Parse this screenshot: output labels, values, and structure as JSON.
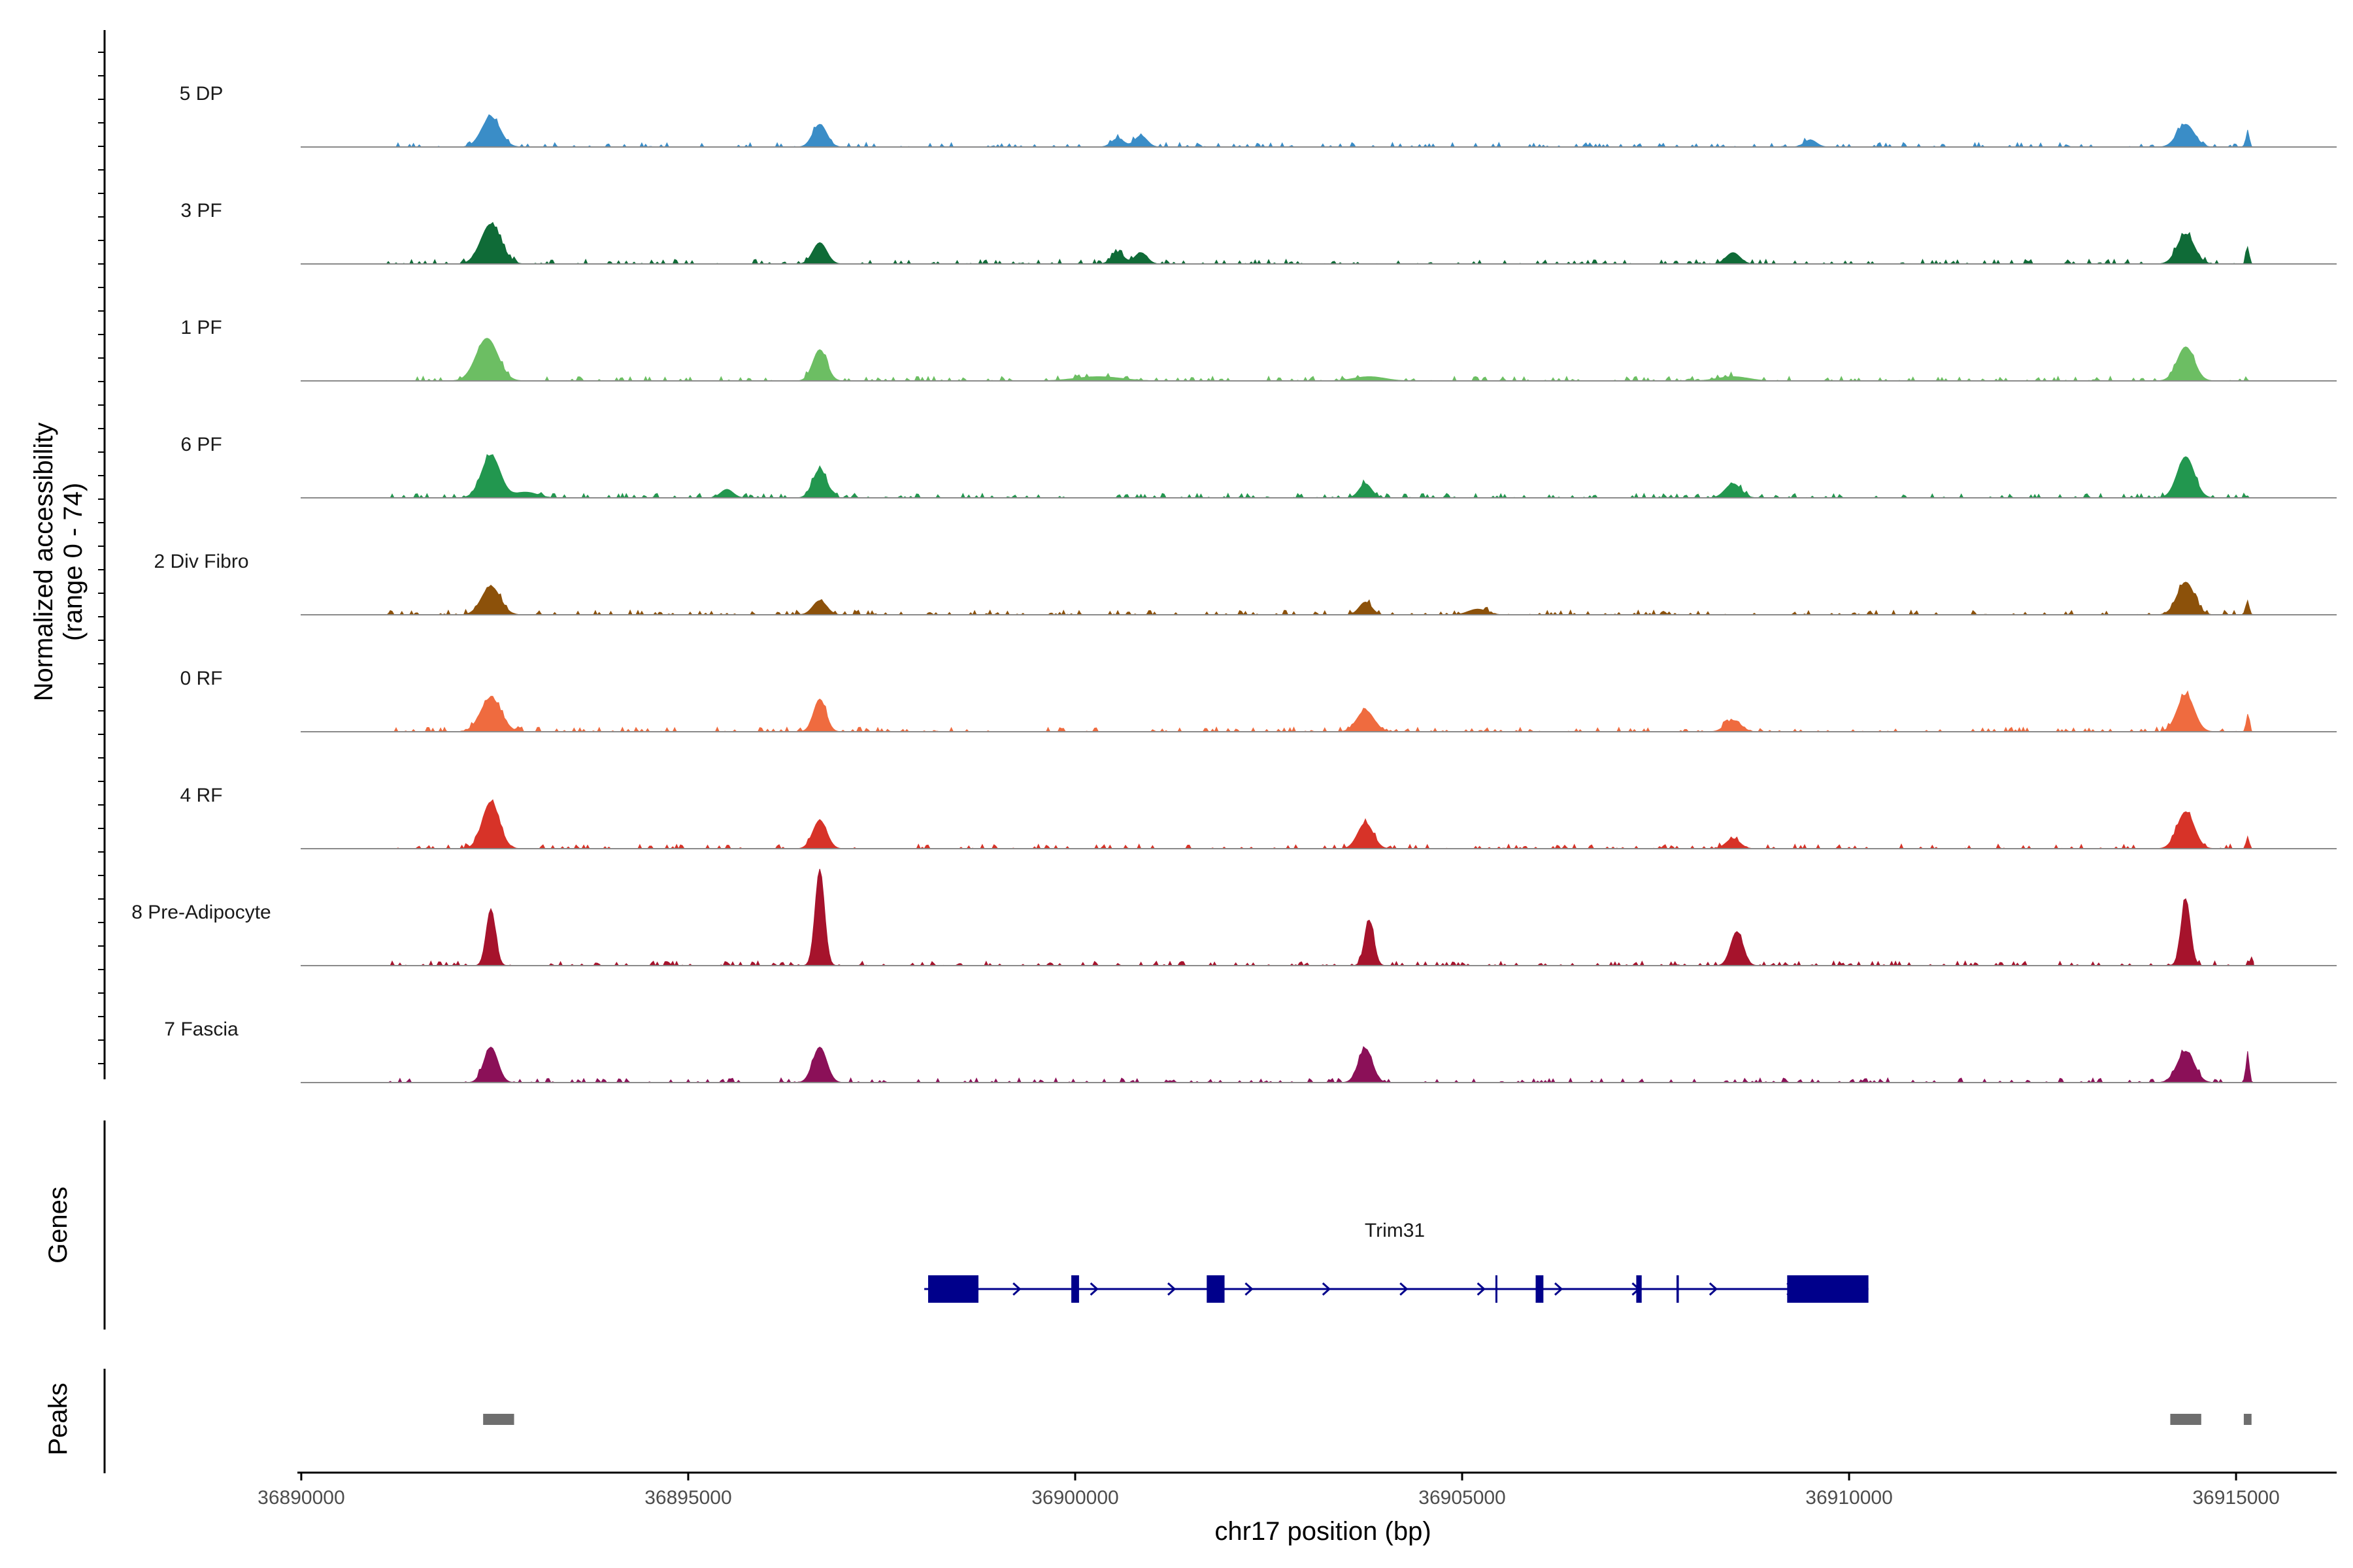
{
  "chart_data": {
    "type": "area",
    "description_type": "genome coverage tracks",
    "ylabel_line1": "Normalized accessibility",
    "ylabel_line2": "(range 0 - 74)",
    "ylim": [
      0,
      74
    ],
    "xlabel": "chr17 position (bp)",
    "xlim": [
      36889950,
      36916300
    ],
    "x_ticks": [
      36890000,
      36895000,
      36900000,
      36905000,
      36910000,
      36915000
    ],
    "x_tick_labels": [
      "36890000",
      "36895000",
      "36900000",
      "36905000",
      "36910000",
      "36915000"
    ],
    "tracks": [
      {
        "name": "5 DP",
        "color": "#3A8DC7",
        "peaks": [
          [
            36892450,
            21,
            120
          ],
          [
            36896700,
            16,
            90
          ],
          [
            36900550,
            6,
            80
          ],
          [
            36900850,
            8,
            80
          ],
          [
            36909500,
            5,
            80
          ],
          [
            36914350,
            16,
            110
          ],
          [
            36915150,
            12,
            20
          ]
        ]
      },
      {
        "name": "3 PF",
        "color": "#0F6B37",
        "peaks": [
          [
            36892450,
            28,
            130
          ],
          [
            36896700,
            15,
            90
          ],
          [
            36900550,
            8,
            80
          ],
          [
            36900850,
            8,
            80
          ],
          [
            36908500,
            8,
            90
          ],
          [
            36914350,
            21,
            110
          ],
          [
            36915150,
            12,
            20
          ]
        ]
      },
      {
        "name": "1 PF",
        "color": "#6CBE63",
        "peaks": [
          [
            36892400,
            30,
            140
          ],
          [
            36896700,
            22,
            90
          ],
          [
            36900300,
            3,
            300
          ],
          [
            36903800,
            3,
            200
          ],
          [
            36908500,
            3,
            200
          ],
          [
            36914350,
            24,
            110
          ]
        ]
      },
      {
        "name": "6 PF",
        "color": "#22974F",
        "peaks": [
          [
            36892450,
            30,
            120
          ],
          [
            36896700,
            20,
            90
          ],
          [
            36895500,
            6,
            80
          ],
          [
            36903750,
            10,
            80
          ],
          [
            36908500,
            10,
            100
          ],
          [
            36914350,
            29,
            110
          ],
          [
            36892900,
            4,
            150
          ]
        ]
      },
      {
        "name": "2 Div Fibro",
        "color": "#8C510A",
        "peaks": [
          [
            36892450,
            20,
            120
          ],
          [
            36896700,
            10,
            90
          ],
          [
            36903750,
            9,
            80
          ],
          [
            36905200,
            4,
            120
          ],
          [
            36914350,
            23,
            110
          ],
          [
            36915150,
            10,
            20
          ]
        ]
      },
      {
        "name": "0 RF",
        "color": "#EF6B3F",
        "peaks": [
          [
            36892450,
            24,
            130
          ],
          [
            36896700,
            23,
            80
          ],
          [
            36903750,
            15,
            110
          ],
          [
            36908500,
            8,
            100
          ],
          [
            36914350,
            26,
            110
          ],
          [
            36915150,
            11,
            20
          ]
        ]
      },
      {
        "name": "4 RF",
        "color": "#D73328",
        "peaks": [
          [
            36892450,
            33,
            110
          ],
          [
            36896700,
            20,
            90
          ],
          [
            36903750,
            18,
            100
          ],
          [
            36908500,
            7,
            90
          ],
          [
            36914350,
            26,
            110
          ],
          [
            36915150,
            8,
            20
          ]
        ]
      },
      {
        "name": "8 Pre-Adipocyte",
        "color": "#A6132C",
        "peaks": [
          [
            36892450,
            40,
            60
          ],
          [
            36896700,
            68,
            60
          ],
          [
            36903800,
            32,
            60
          ],
          [
            36908550,
            24,
            80
          ],
          [
            36914350,
            47,
            60
          ],
          [
            36915200,
            6,
            20
          ]
        ]
      },
      {
        "name": "7 Fascia",
        "color": "#8B1058",
        "peaks": [
          [
            36892450,
            25,
            90
          ],
          [
            36896700,
            25,
            90
          ],
          [
            36903750,
            24,
            90
          ],
          [
            36914350,
            22,
            110
          ],
          [
            36915150,
            22,
            20
          ]
        ]
      }
    ],
    "genes_label": "Genes",
    "gene": {
      "name": "Trim31",
      "strand": "+",
      "start": 36898050,
      "end": 36910250,
      "exons": [
        [
          36898100,
          36898750
        ],
        [
          36899950,
          36900050
        ],
        [
          36901700,
          36901930
        ],
        [
          36905430,
          36905450
        ],
        [
          36905950,
          36906050
        ],
        [
          36907250,
          36907320
        ],
        [
          36907770,
          36907800
        ],
        [
          36909200,
          36910250
        ]
      ]
    },
    "peaks_label": "Peaks",
    "peak_regions": [
      [
        36892350,
        36892750
      ],
      [
        36914150,
        36914550
      ],
      [
        36915100,
        36915200
      ]
    ]
  }
}
